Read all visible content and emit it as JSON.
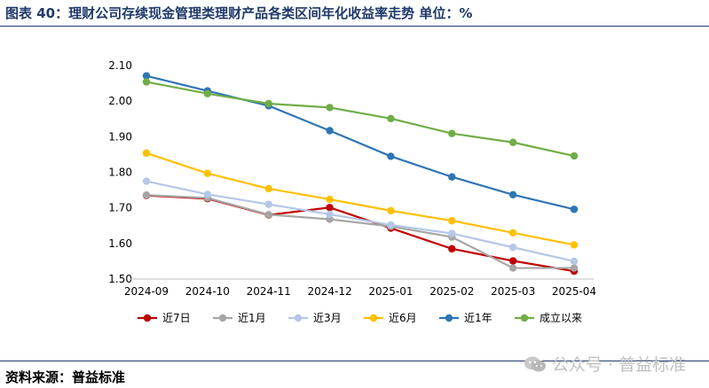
{
  "header": {
    "title": "图表 40：理财公司存续现金管理类理财产品各类区间年化收益率走势    单位：%"
  },
  "footer": {
    "source": "资料来源：普益标准",
    "watermark": "公众号 · 普益标准"
  },
  "chart_data": {
    "type": "line",
    "title": "",
    "xlabel": "",
    "ylabel": "",
    "ylim": [
      1.5,
      2.1
    ],
    "yticks": [
      1.5,
      1.6,
      1.7,
      1.8,
      1.9,
      2.0,
      2.1
    ],
    "ytick_labels": [
      "1.50",
      "1.60",
      "1.70",
      "1.80",
      "1.90",
      "2.00",
      "2.10"
    ],
    "grid": false,
    "legend_position": "bottom",
    "categories": [
      "2024-09",
      "2024-10",
      "2024-11",
      "2024-12",
      "2025-01",
      "2025-02",
      "2025-03",
      "2025-04"
    ],
    "series": [
      {
        "name": "近7日",
        "color": "#c00000",
        "values": [
          1.735,
          1.726,
          1.68,
          1.701,
          1.643,
          1.585,
          1.551,
          1.522
        ]
      },
      {
        "name": "近1月",
        "color": "#a6a6a6",
        "values": [
          1.736,
          1.728,
          1.681,
          1.668,
          1.648,
          1.618,
          1.531,
          1.531
        ]
      },
      {
        "name": "近3月",
        "color": "#b4c7e7",
        "values": [
          1.775,
          1.738,
          1.71,
          1.682,
          1.652,
          1.628,
          1.589,
          1.55
        ]
      },
      {
        "name": "近6月",
        "color": "#ffc000",
        "values": [
          1.854,
          1.797,
          1.754,
          1.724,
          1.692,
          1.664,
          1.63,
          1.596
        ]
      },
      {
        "name": "近1年",
        "color": "#2e75b6",
        "values": [
          2.071,
          2.029,
          1.987,
          1.917,
          1.845,
          1.787,
          1.737,
          1.696
        ]
      },
      {
        "name": "成立以来",
        "color": "#70ad47",
        "values": [
          2.054,
          2.021,
          1.993,
          1.982,
          1.951,
          1.909,
          1.884,
          1.846
        ]
      }
    ]
  }
}
